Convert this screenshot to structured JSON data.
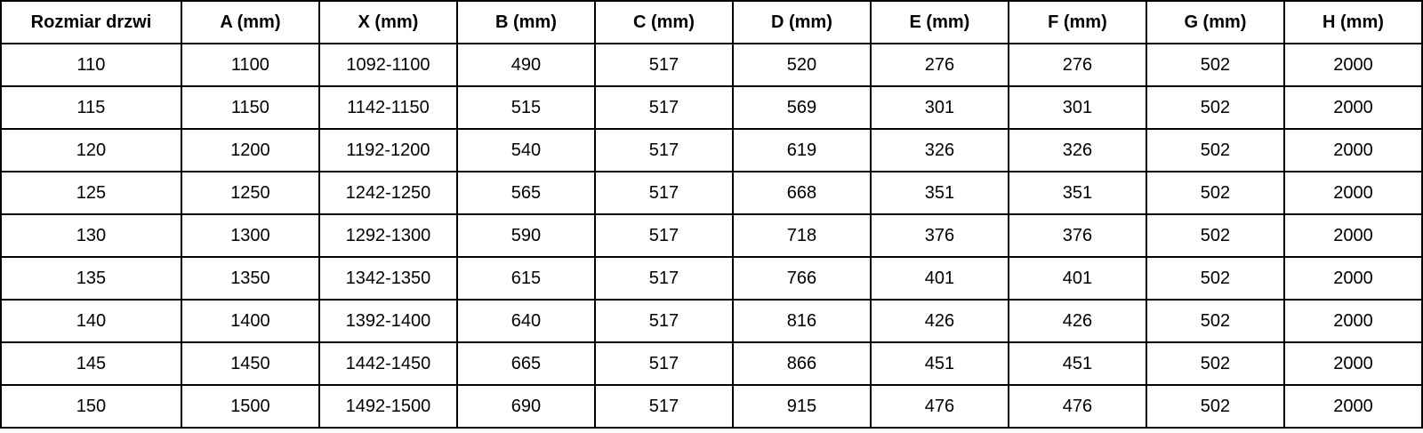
{
  "table": {
    "columns": [
      "Rozmiar drzwi",
      "A (mm)",
      "X (mm)",
      "B (mm)",
      "C (mm)",
      "D (mm)",
      "E (mm)",
      "F (mm)",
      "G (mm)",
      "H (mm)"
    ],
    "rows": [
      [
        "110",
        "1100",
        "1092-1100",
        "490",
        "517",
        "520",
        "276",
        "276",
        "502",
        "2000"
      ],
      [
        "115",
        "1150",
        "1142-1150",
        "515",
        "517",
        "569",
        "301",
        "301",
        "502",
        "2000"
      ],
      [
        "120",
        "1200",
        "1192-1200",
        "540",
        "517",
        "619",
        "326",
        "326",
        "502",
        "2000"
      ],
      [
        "125",
        "1250",
        "1242-1250",
        "565",
        "517",
        "668",
        "351",
        "351",
        "502",
        "2000"
      ],
      [
        "130",
        "1300",
        "1292-1300",
        "590",
        "517",
        "718",
        "376",
        "376",
        "502",
        "2000"
      ],
      [
        "135",
        "1350",
        "1342-1350",
        "615",
        "517",
        "766",
        "401",
        "401",
        "502",
        "2000"
      ],
      [
        "140",
        "1400",
        "1392-1400",
        "640",
        "517",
        "816",
        "426",
        "426",
        "502",
        "2000"
      ],
      [
        "145",
        "1450",
        "1442-1450",
        "665",
        "517",
        "866",
        "451",
        "451",
        "502",
        "2000"
      ],
      [
        "150",
        "1500",
        "1492-1500",
        "690",
        "517",
        "915",
        "476",
        "476",
        "502",
        "2000"
      ]
    ],
    "colors": {
      "border": "#000000",
      "text": "#000000",
      "background": "#ffffff"
    }
  }
}
